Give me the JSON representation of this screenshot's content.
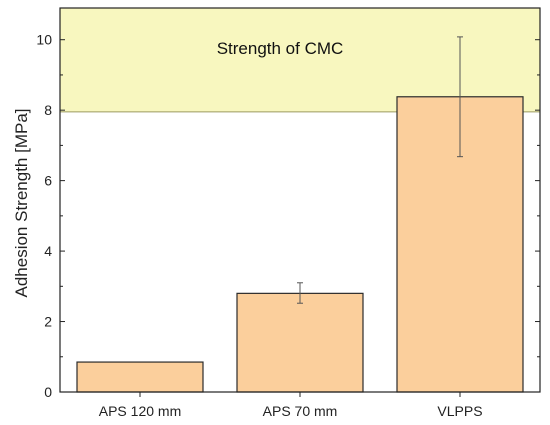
{
  "chart_data": {
    "type": "bar",
    "categories": [
      "APS 120 mm",
      "APS 70 mm",
      "VLPPS"
    ],
    "values": [
      0.85,
      2.8,
      8.38
    ],
    "error": [
      {
        "low": null,
        "high": null
      },
      {
        "low": 2.52,
        "high": 3.1
      },
      {
        "low": 6.68,
        "high": 10.08
      }
    ],
    "xlabel": "",
    "ylabel": "Adhesion Strength [MPa]",
    "ylim": [
      0,
      10.9
    ],
    "yticks": [
      0,
      2,
      4,
      6,
      8,
      10
    ],
    "grid": false,
    "band": {
      "from": 7.95,
      "to": 10.9,
      "label": "Strength of CMC"
    },
    "colors": {
      "bar_fill": "#FBCF9C",
      "bar_stroke": "#2b2b2b",
      "band_fill": "#F8F7BF",
      "band_stroke": "#9a9a60",
      "error_bar": "#555555"
    }
  }
}
